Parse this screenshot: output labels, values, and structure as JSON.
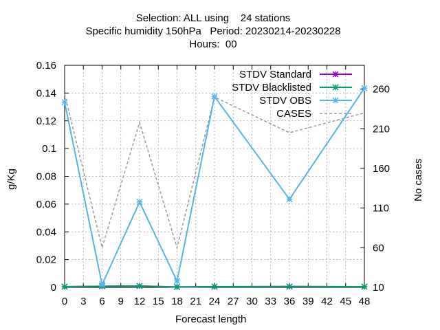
{
  "title": {
    "line1": "Selection: ALL using    24 stations",
    "line2": "Specific humidity 150hPa   Period: 20230214-20230228",
    "line3": "Hours:  00"
  },
  "chart_data": {
    "type": "line",
    "title": "Selection: ALL using    24 stations / Specific humidity 150hPa   Period: 20230214-20230228 / Hours:  00",
    "xlabel": "Forecast length",
    "ylabel": "g/Kg",
    "y2label": "No cases",
    "xlim": [
      0,
      48
    ],
    "ylim": [
      0,
      0.16
    ],
    "y2lim": [
      10,
      290
    ],
    "xticks": [
      0,
      3,
      6,
      9,
      12,
      15,
      18,
      21,
      24,
      27,
      30,
      33,
      36,
      39,
      42,
      45,
      48
    ],
    "yticks": [
      0,
      0.02,
      0.04,
      0.06,
      0.08,
      0.1,
      0.12,
      0.14,
      0.16
    ],
    "ytick_labels": [
      "0",
      "0.02",
      "0.04",
      "0.06",
      "0.08",
      "0.1",
      "0.12",
      "0.14",
      "0.16"
    ],
    "y2ticks": [
      10,
      60,
      110,
      160,
      210,
      260
    ],
    "grid": true,
    "legend_position": "top-right",
    "x": [
      0,
      6,
      12,
      18,
      24,
      36,
      48
    ],
    "series": [
      {
        "name": "STDV Standard",
        "color": "#9400d3",
        "axis": "y1",
        "style": "solid",
        "marker": "x",
        "values": [
          0.0005,
          0.0008,
          0.001,
          0.0003,
          0.0005,
          0.0006,
          0.0005
        ]
      },
      {
        "name": "STDV Blacklisted",
        "color": "#009e73",
        "axis": "y1",
        "style": "solid",
        "marker": "x",
        "values": [
          0.0005,
          0.0008,
          0.001,
          0.0003,
          0.0005,
          0.0006,
          0.0005
        ]
      },
      {
        "name": "STDV OBS",
        "color": "#56b4e9",
        "axis": "y1",
        "style": "solid",
        "marker": "x",
        "values": [
          0.1335,
          0.002,
          0.0615,
          0.0045,
          0.1375,
          0.0635,
          0.1435
        ]
      },
      {
        "name": "CASES",
        "color": "#999999",
        "axis": "y2",
        "style": "dashed",
        "marker": "none",
        "values": [
          254,
          60,
          218,
          60,
          250,
          205,
          230
        ]
      }
    ]
  }
}
